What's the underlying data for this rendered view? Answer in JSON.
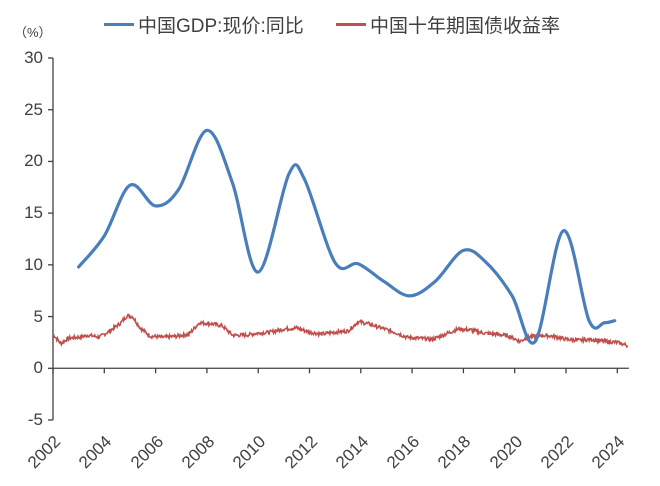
{
  "chart_data": {
    "type": "line",
    "title": "",
    "unit_label": "（%）",
    "xlabel": "",
    "ylabel": "%",
    "ylim": [
      -5,
      30
    ],
    "yticks": [
      "30",
      "25",
      "20",
      "15",
      "10",
      "5",
      "0",
      "-5"
    ],
    "xticks": [
      "2002",
      "2004",
      "2006",
      "2008",
      "2010",
      "2012",
      "2014",
      "2016",
      "2018",
      "2020",
      "2022",
      "2024"
    ],
    "xlim": [
      2002,
      2024.45
    ],
    "grid": false,
    "legend_position": "top",
    "series": [
      {
        "name": "中国GDP:现价:同比",
        "color": "#4a7ebb",
        "x": [
          2003.0,
          2004.0,
          2005.0,
          2006.0,
          2006.9,
          2008.0,
          2009.0,
          2010.0,
          2011.2,
          2011.8,
          2013.0,
          2013.9,
          2014.9,
          2015.9,
          2016.9,
          2018.0,
          2018.9,
          2019.9,
          2020.8,
          2021.9,
          2022.9,
          2023.5,
          2023.9
        ],
        "values": [
          9.8,
          12.8,
          17.7,
          15.7,
          17.3,
          23.0,
          17.9,
          9.3,
          18.8,
          18.3,
          10.2,
          10.1,
          8.4,
          7.0,
          8.4,
          11.4,
          10.2,
          7.0,
          2.6,
          13.3,
          4.6,
          4.4,
          4.6
        ]
      },
      {
        "name": "中国十年期国债收益率",
        "color": "#c0504d",
        "x": [
          2002.0,
          2002.3,
          2002.6,
          2003.0,
          2003.4,
          2003.8,
          2004.2,
          2004.6,
          2004.9,
          2005.1,
          2005.4,
          2005.8,
          2006.3,
          2006.8,
          2007.3,
          2007.7,
          2008.2,
          2008.6,
          2009.0,
          2009.5,
          2010.0,
          2010.5,
          2011.0,
          2011.5,
          2012.0,
          2012.5,
          2013.0,
          2013.5,
          2013.9,
          2014.3,
          2014.8,
          2015.3,
          2015.8,
          2016.3,
          2016.8,
          2017.3,
          2017.8,
          2018.3,
          2018.8,
          2019.3,
          2019.8,
          2020.2,
          2020.5,
          2021.0,
          2021.5,
          2022.0,
          2022.5,
          2023.0,
          2023.5,
          2024.0,
          2024.4
        ],
        "values": [
          3.3,
          2.4,
          2.9,
          3.0,
          3.2,
          3.0,
          3.6,
          4.3,
          5.1,
          5.0,
          3.9,
          3.1,
          3.0,
          3.1,
          3.3,
          4.4,
          4.3,
          4.1,
          3.2,
          3.2,
          3.4,
          3.5,
          3.8,
          3.9,
          3.5,
          3.3,
          3.5,
          3.6,
          4.5,
          4.3,
          3.9,
          3.5,
          3.0,
          2.9,
          2.8,
          3.3,
          3.8,
          3.7,
          3.4,
          3.3,
          3.1,
          2.6,
          3.0,
          3.2,
          3.1,
          2.8,
          2.7,
          2.8,
          2.6,
          2.5,
          2.2
        ]
      }
    ]
  },
  "legend": {
    "items": [
      {
        "label": "中国GDP:现价:同比",
        "color": "#4a7ebb"
      },
      {
        "label": "中国十年期国债收益率",
        "color": "#c0504d"
      }
    ]
  }
}
